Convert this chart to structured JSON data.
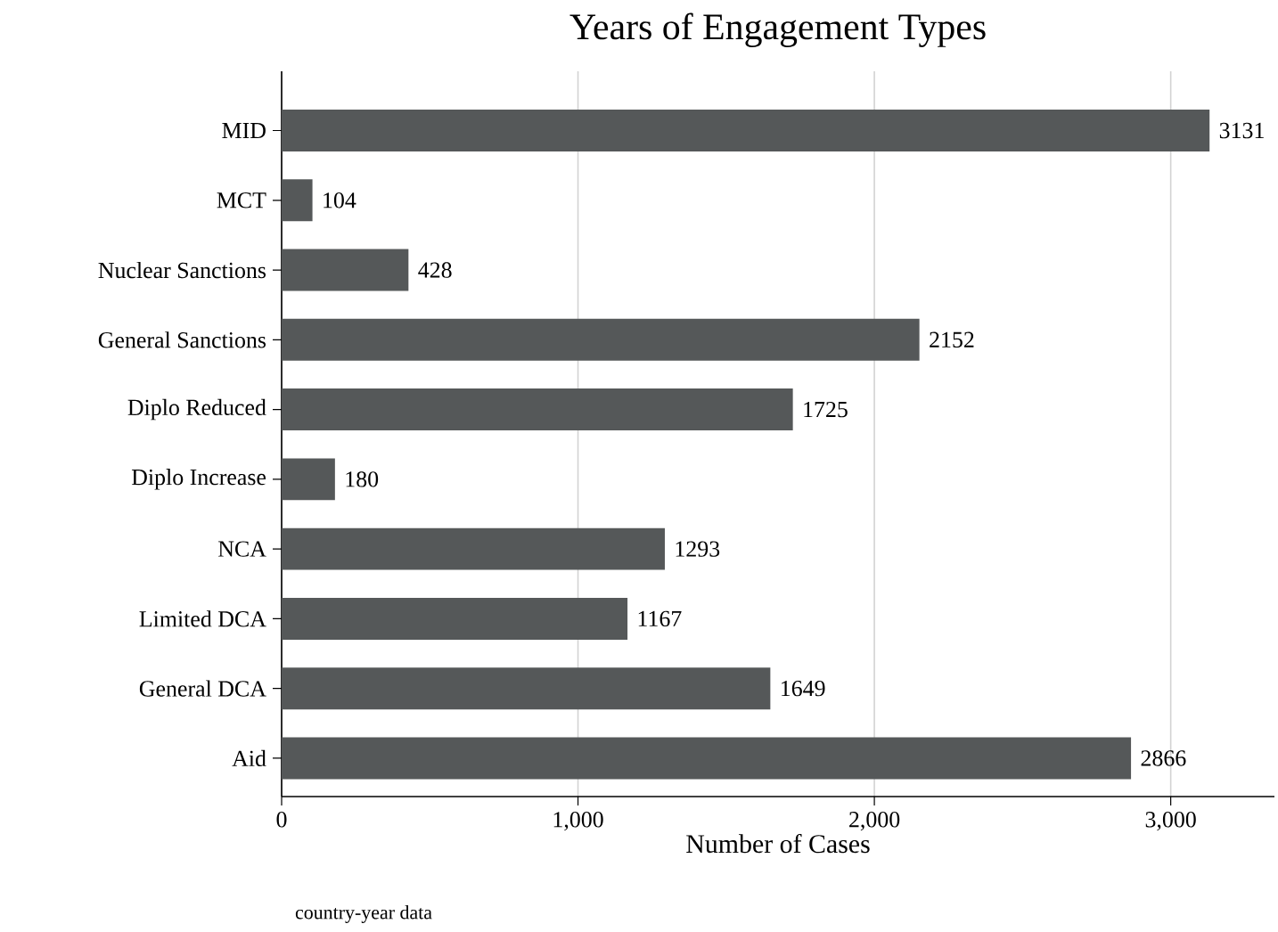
{
  "chart_data": {
    "type": "bar",
    "orientation": "horizontal",
    "title": "Years of Engagement Types",
    "xlabel": "Number of Cases",
    "categories": [
      "MID",
      "MCT",
      "Nuclear Sanctions",
      "General Sanctions",
      "Diplo Reduced",
      "Diplo Increase",
      "NCA",
      "Limited DCA",
      "General DCA",
      "Aid"
    ],
    "values": [
      3131,
      104,
      428,
      2152,
      1725,
      180,
      1293,
      1167,
      1649,
      2866
    ],
    "color": "#555859",
    "xlim": [
      0,
      3350
    ],
    "xticks": [
      0,
      {
        "value": 1000,
        "label": "1,000"
      },
      {
        "value": 2000,
        "label": "2,000"
      },
      {
        "value": 3000,
        "label": "3,000"
      }
    ],
    "grid": "x",
    "data_labels": true,
    "annotations": [
      "country-year data"
    ]
  }
}
